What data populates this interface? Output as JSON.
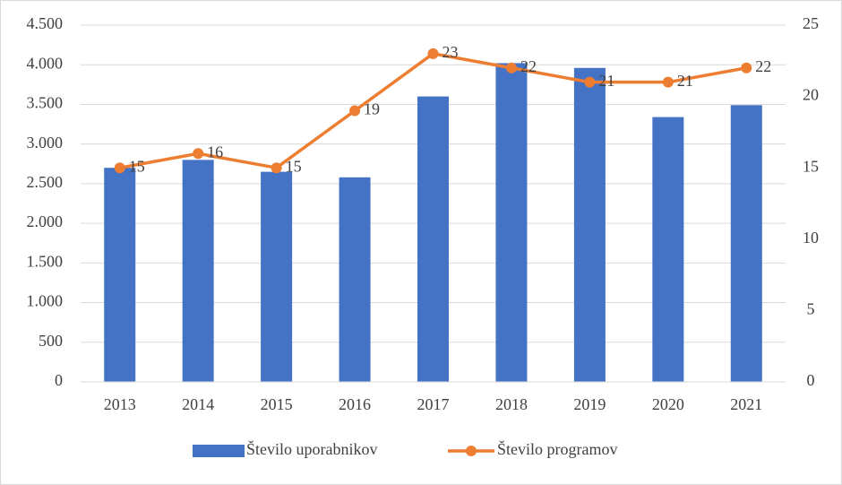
{
  "chart_data": {
    "type": "bar",
    "categories": [
      "2013",
      "2014",
      "2015",
      "2016",
      "2017",
      "2018",
      "2019",
      "2020",
      "2021"
    ],
    "series": [
      {
        "name": "Število uporabnikov",
        "color": "#4472c4",
        "type": "bar",
        "values": [
          2700,
          2800,
          2650,
          2580,
          3600,
          4020,
          3960,
          3340,
          3490
        ]
      },
      {
        "name": "Število programov",
        "color": "#ed7d31",
        "type": "line",
        "axis": "y2",
        "values": [
          15,
          16,
          15,
          19,
          23,
          22,
          21,
          21,
          22
        ]
      }
    ],
    "ylim": [
      0,
      4500
    ],
    "yticks": [
      0,
      500,
      {
        "value": 1000,
        "label": "1.000"
      },
      {
        "value": 1500,
        "label": "1.500"
      },
      {
        "value": 2000,
        "label": "2.000"
      },
      {
        "value": 2500,
        "label": "2.500"
      },
      {
        "value": 3000,
        "label": "3.000"
      },
      {
        "value": 3500,
        "label": "3.500"
      },
      {
        "value": 4000,
        "label": "4.000"
      },
      {
        "value": 4500,
        "label": "4.500"
      }
    ],
    "y2lim": [
      0,
      25
    ],
    "y2ticks": [
      0,
      5,
      10,
      15,
      20,
      25
    ],
    "grid": true,
    "legend": "bottom"
  }
}
